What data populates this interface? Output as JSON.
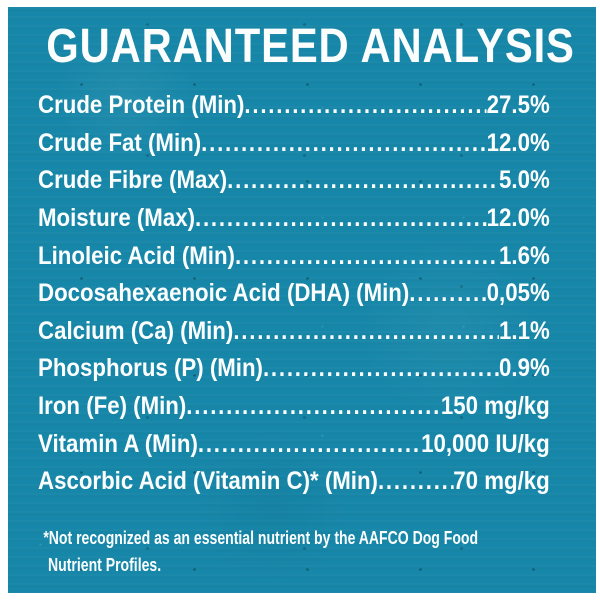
{
  "label": {
    "title": "GUARANTEED ANALYSIS",
    "background_color": "#1787A9",
    "text_color": "#FCFEFE"
  },
  "rows": [
    {
      "label": "Crude Protein (Min)",
      "value": "27.5%"
    },
    {
      "label": "Crude Fat (Min)",
      "value": "12.0%"
    },
    {
      "label": "Crude Fibre (Max)",
      "value": "5.0%"
    },
    {
      "label": "Moisture (Max)",
      "value": "12.0%"
    },
    {
      "label": "Linoleic Acid (Min)",
      "value": "1.6%"
    },
    {
      "label": "Docosahexaenoic Acid (DHA) (Min)",
      "value": "0,05%"
    },
    {
      "label": "Calcium (Ca) (Min)",
      "value": "1.1%"
    },
    {
      "label": "Phosphorus (P) (Min)",
      "value": "0.9%"
    },
    {
      "label": "Iron (Fe) (Min)",
      "value": "150 mg/kg"
    },
    {
      "label": "Vitamin A (Min)",
      "value": "10,000 IU/kg"
    },
    {
      "label": "Ascorbic Acid (Vitamin C)* (Min)",
      "value": "70 mg/kg"
    }
  ],
  "footnote": {
    "line1": "*Not recognized as an essential nutrient by the AAFCO Dog Food",
    "line2": "Nutrient Profiles."
  }
}
